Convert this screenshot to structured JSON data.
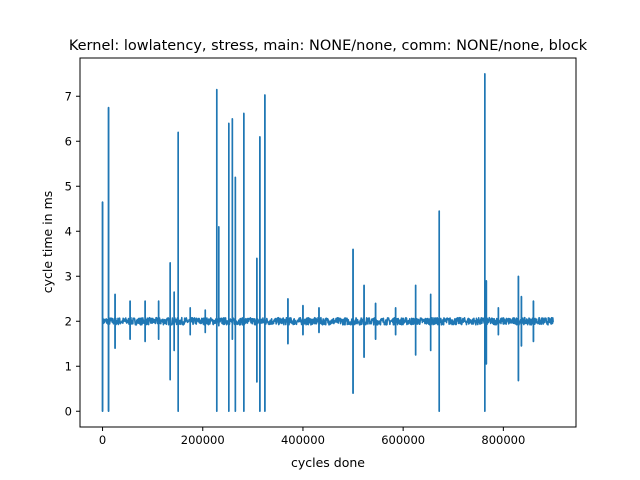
{
  "chart_data": {
    "type": "line",
    "title": "Kernel: lowlatency, stress, main: NONE/none, comm: NONE/none, block",
    "xlabel": "cycles done",
    "ylabel": "cycle time in ms",
    "xlim": [
      -45000,
      945000
    ],
    "ylim": [
      -0.35,
      7.85
    ],
    "x_ticks": [
      0,
      200000,
      400000,
      600000,
      800000
    ],
    "x_tick_labels": [
      "0",
      "200000",
      "400000",
      "600000",
      "800000"
    ],
    "y_ticks": [
      0,
      1,
      2,
      3,
      4,
      5,
      6,
      7
    ],
    "y_tick_labels": [
      "0",
      "1",
      "2",
      "3",
      "4",
      "5",
      "6",
      "7"
    ],
    "grid": false,
    "baseline": 2.0,
    "baseline_noise": 0.08,
    "x_range": [
      0,
      900000
    ],
    "series": [
      {
        "name": "",
        "color": "#1f77b4",
        "spikes": [
          {
            "x": 0,
            "hi": 4.65,
            "lo": 0.0
          },
          {
            "x": 12000,
            "hi": 6.75,
            "lo": 0.0
          },
          {
            "x": 25000,
            "hi": 2.6,
            "lo": 1.4
          },
          {
            "x": 55000,
            "hi": 2.45,
            "lo": 1.6
          },
          {
            "x": 85000,
            "hi": 2.45,
            "lo": 1.55
          },
          {
            "x": 112000,
            "hi": 2.45,
            "lo": 1.6
          },
          {
            "x": 135000,
            "hi": 3.3,
            "lo": 0.7
          },
          {
            "x": 143000,
            "hi": 2.65,
            "lo": 1.35
          },
          {
            "x": 151000,
            "hi": 6.2,
            "lo": 0.0
          },
          {
            "x": 175000,
            "hi": 2.3,
            "lo": 1.7
          },
          {
            "x": 205000,
            "hi": 2.25,
            "lo": 1.75
          },
          {
            "x": 228000,
            "hi": 7.15,
            "lo": 0.0
          },
          {
            "x": 232000,
            "hi": 4.1,
            "lo": 1.9
          },
          {
            "x": 252000,
            "hi": 6.4,
            "lo": 0.0
          },
          {
            "x": 259000,
            "hi": 6.5,
            "lo": 1.6
          },
          {
            "x": 265000,
            "hi": 5.2,
            "lo": 0.0
          },
          {
            "x": 282000,
            "hi": 6.62,
            "lo": 0.0
          },
          {
            "x": 308000,
            "hi": 3.4,
            "lo": 0.65
          },
          {
            "x": 314000,
            "hi": 6.1,
            "lo": 0.0
          },
          {
            "x": 324000,
            "hi": 7.03,
            "lo": 0.0
          },
          {
            "x": 370000,
            "hi": 2.5,
            "lo": 1.5
          },
          {
            "x": 400000,
            "hi": 2.35,
            "lo": 1.7
          },
          {
            "x": 432000,
            "hi": 2.3,
            "lo": 1.75
          },
          {
            "x": 500000,
            "hi": 3.6,
            "lo": 0.4
          },
          {
            "x": 522000,
            "hi": 2.8,
            "lo": 1.2
          },
          {
            "x": 545000,
            "hi": 2.4,
            "lo": 1.6
          },
          {
            "x": 585000,
            "hi": 2.3,
            "lo": 1.7
          },
          {
            "x": 625000,
            "hi": 2.8,
            "lo": 1.25
          },
          {
            "x": 655000,
            "hi": 2.6,
            "lo": 1.35
          },
          {
            "x": 672000,
            "hi": 4.45,
            "lo": 0.0
          },
          {
            "x": 763000,
            "hi": 7.5,
            "lo": 0.0
          },
          {
            "x": 766000,
            "hi": 2.9,
            "lo": 1.05
          },
          {
            "x": 790000,
            "hi": 2.3,
            "lo": 1.7
          },
          {
            "x": 830000,
            "hi": 3.0,
            "lo": 0.68
          },
          {
            "x": 836000,
            "hi": 2.55,
            "lo": 1.45
          },
          {
            "x": 860000,
            "hi": 2.45,
            "lo": 1.55
          }
        ]
      }
    ]
  }
}
